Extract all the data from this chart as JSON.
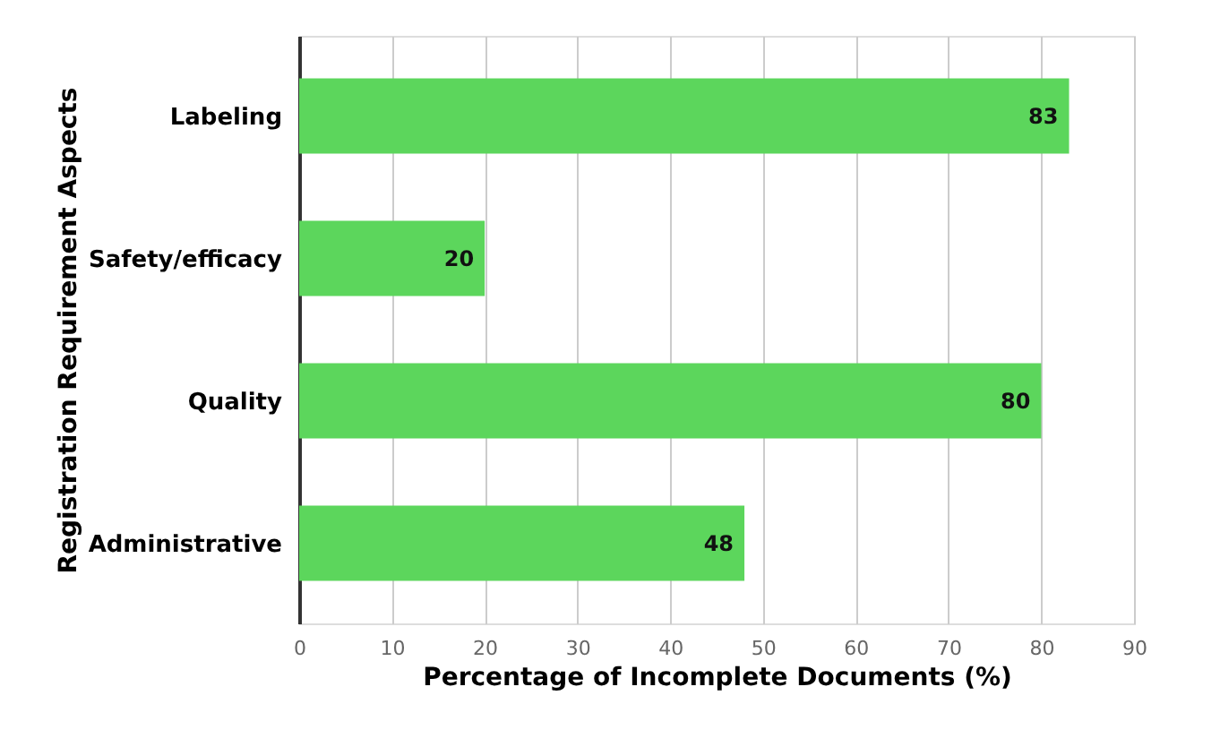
{
  "chart_data": {
    "type": "bar",
    "orientation": "horizontal",
    "xlabel": "Percentage of Incomplete Documents (%)",
    "ylabel": "Registration Requirement Aspects",
    "categories": [
      "Labeling",
      "Safety/efficacy",
      "Quality",
      "Administrative"
    ],
    "values": [
      83,
      20,
      80,
      48
    ],
    "color": "#5cd65c",
    "xlim": [
      0,
      90
    ],
    "xticks": [
      0,
      10,
      20,
      30,
      40,
      50,
      60,
      70,
      80,
      90
    ],
    "grid": "x",
    "data_labels": true
  }
}
